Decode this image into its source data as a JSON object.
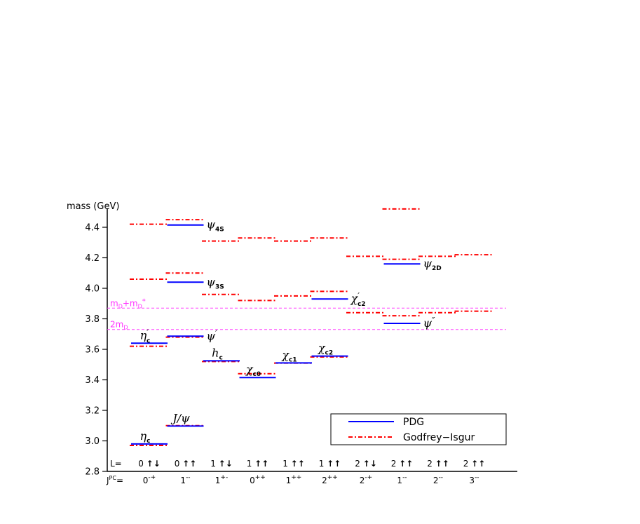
{
  "chart_data": {
    "type": "level-diagram",
    "ylabel": "mass (GeV)",
    "ylim": [
      2.8,
      4.55
    ],
    "yticks": [
      "2.8",
      "3.0",
      "3.2",
      "3.4",
      "3.6",
      "3.8",
      "4.0",
      "4.2",
      "4.4"
    ],
    "row_prefix_L": "L=",
    "row_prefix_JPC": "J",
    "row_prefix_JPC_sup": "PC",
    "row_prefix_JPC_eq": "=",
    "columns": [
      {
        "L": "0",
        "spin": "↑↓",
        "J": "0",
        "PC": "-+"
      },
      {
        "L": "0",
        "spin": "↑↑",
        "J": "1",
        "PC": "--"
      },
      {
        "L": "1",
        "spin": "↑↓",
        "J": "1",
        "PC": "+-"
      },
      {
        "L": "1",
        "spin": "↑↑",
        "J": "0",
        "PC": "++"
      },
      {
        "L": "1",
        "spin": "↑↑",
        "J": "1",
        "PC": "++"
      },
      {
        "L": "1",
        "spin": "↑↑",
        "J": "2",
        "PC": "++"
      },
      {
        "L": "2",
        "spin": "↑↓",
        "J": "2",
        "PC": "-+"
      },
      {
        "L": "2",
        "spin": "↑↑",
        "J": "1",
        "PC": "--"
      },
      {
        "L": "2",
        "spin": "↑↑",
        "J": "2",
        "PC": "--"
      },
      {
        "L": "2",
        "spin": "↑↑",
        "J": "3",
        "PC": "--"
      }
    ],
    "series": [
      {
        "name": "PDG",
        "color": "#0000ff",
        "points": [
          {
            "col": 0,
            "mass": 2.98
          },
          {
            "col": 0,
            "mass": 3.64
          },
          {
            "col": 1,
            "mass": 3.097
          },
          {
            "col": 1,
            "mass": 3.686
          },
          {
            "col": 1,
            "mass": 4.04
          },
          {
            "col": 1,
            "mass": 4.415
          },
          {
            "col": 2,
            "mass": 3.525
          },
          {
            "col": 3,
            "mass": 3.415
          },
          {
            "col": 4,
            "mass": 3.511
          },
          {
            "col": 5,
            "mass": 3.556
          },
          {
            "col": 5,
            "mass": 3.93
          },
          {
            "col": 7,
            "mass": 3.77
          },
          {
            "col": 7,
            "mass": 4.16
          }
        ]
      },
      {
        "name": "Godfrey−Isgur",
        "color": "#ff0000",
        "points": [
          {
            "col": 0,
            "mass": 2.97
          },
          {
            "col": 0,
            "mass": 3.62
          },
          {
            "col": 0,
            "mass": 4.06
          },
          {
            "col": 0,
            "mass": 4.42
          },
          {
            "col": 1,
            "mass": 3.1
          },
          {
            "col": 1,
            "mass": 3.68
          },
          {
            "col": 1,
            "mass": 4.1
          },
          {
            "col": 1,
            "mass": 4.45
          },
          {
            "col": 2,
            "mass": 3.52
          },
          {
            "col": 2,
            "mass": 3.96
          },
          {
            "col": 2,
            "mass": 4.31
          },
          {
            "col": 3,
            "mass": 3.44
          },
          {
            "col": 3,
            "mass": 3.92
          },
          {
            "col": 3,
            "mass": 4.33
          },
          {
            "col": 4,
            "mass": 3.51
          },
          {
            "col": 4,
            "mass": 3.95
          },
          {
            "col": 4,
            "mass": 4.31
          },
          {
            "col": 5,
            "mass": 3.55
          },
          {
            "col": 5,
            "mass": 3.98
          },
          {
            "col": 5,
            "mass": 4.33
          },
          {
            "col": 6,
            "mass": 3.84
          },
          {
            "col": 6,
            "mass": 4.21
          },
          {
            "col": 7,
            "mass": 3.82
          },
          {
            "col": 7,
            "mass": 4.19
          },
          {
            "col": 7,
            "mass": 4.52
          },
          {
            "col": 8,
            "mass": 3.84
          },
          {
            "col": 8,
            "mass": 4.21
          },
          {
            "col": 9,
            "mass": 3.85
          },
          {
            "col": 9,
            "mass": 4.22
          }
        ]
      }
    ],
    "thresholds": [
      {
        "label": "m",
        "sub1": "D",
        "plus": "+m",
        "sub2": "D",
        "sup": "*",
        "mass": 3.87
      },
      {
        "label": "2m",
        "sub1": "D",
        "mass": 3.73
      }
    ],
    "state_labels": [
      {
        "col": 0,
        "mass": 2.98,
        "base": "η",
        "sub": "c",
        "prime": ""
      },
      {
        "col": 0,
        "mass": 3.64,
        "base": "η",
        "sub": "c",
        "prime": "′"
      },
      {
        "col": 1,
        "mass": 3.097,
        "base": "J/ψ",
        "sub": "",
        "prime": ""
      },
      {
        "col": 1,
        "mass": 3.686,
        "base": "ψ",
        "sub": "",
        "prime": "′"
      },
      {
        "col": 1,
        "mass": 4.04,
        "base": "ψ",
        "sub": "3S",
        "prime": ""
      },
      {
        "col": 1,
        "mass": 4.415,
        "base": "ψ",
        "sub": "4S",
        "prime": ""
      },
      {
        "col": 2,
        "mass": 3.525,
        "base": "h",
        "sub": "c",
        "prime": ""
      },
      {
        "col": 3,
        "mass": 3.415,
        "base": "χ",
        "sub": "c0",
        "prime": ""
      },
      {
        "col": 4,
        "mass": 3.511,
        "base": "χ",
        "sub": "c1",
        "prime": ""
      },
      {
        "col": 5,
        "mass": 3.556,
        "base": "χ",
        "sub": "c2",
        "prime": ""
      },
      {
        "col": 5,
        "mass": 3.93,
        "base": "χ",
        "sub": "c2",
        "prime": "′"
      },
      {
        "col": 7,
        "mass": 3.77,
        "base": "ψ",
        "sub": "",
        "prime": "″"
      },
      {
        "col": 7,
        "mass": 4.16,
        "base": "ψ",
        "sub": "2D",
        "prime": ""
      }
    ],
    "legend": {
      "placement": "bottom-right",
      "entries": [
        {
          "label": "PDG",
          "color": "#0000ff",
          "style": "solid"
        },
        {
          "label": "Godfrey−Isgur",
          "color": "#ff0000",
          "style": "dashdot"
        }
      ]
    },
    "grid": false
  }
}
